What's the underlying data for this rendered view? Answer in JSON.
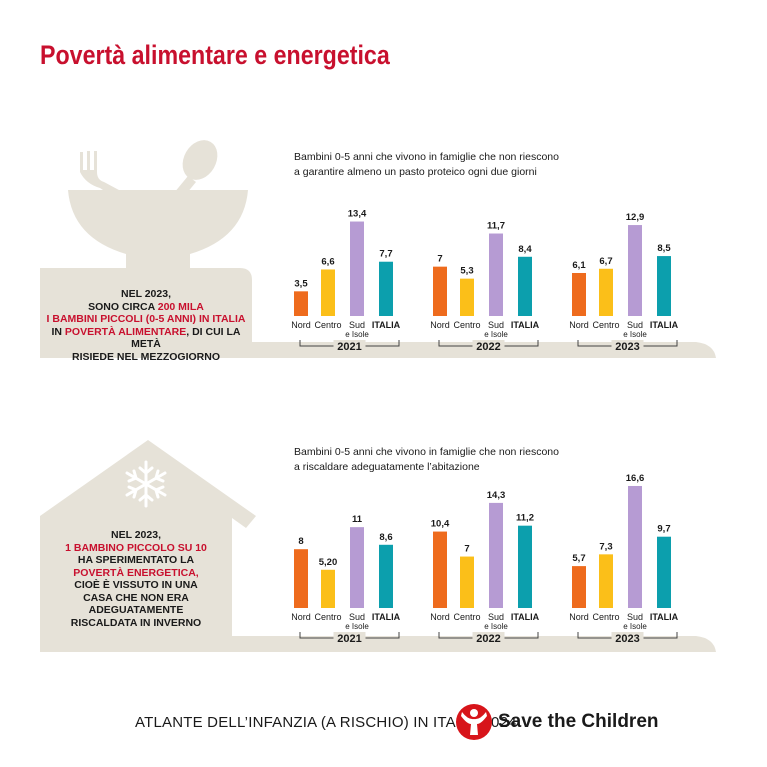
{
  "title": "Povertà alimentare e energetica",
  "footer": {
    "left_text": "ATLANTE DELL’INFANZIA (A RISCHIO) IN ITALIA 2024",
    "logo_text": "Save the Children"
  },
  "colors": {
    "Nord": "#ee6b1d",
    "Centro": "#fbbf19",
    "Sud e Isole": "#b69bd3",
    "ITALIA": "#0c9fad",
    "accent_red": "#c8102e",
    "shape_beige": "#e6e2d8"
  },
  "panels": {
    "food": {
      "subtitle_line1": "Bambini 0-5 anni che vivono in famiglie che non riescono",
      "subtitle_line2": "a garantire almeno un pasto proteico ogni due giorni",
      "icon": "bowl-with-fork-and-spoon-icon",
      "callout": {
        "l1": "NEL 2023,",
        "l2a": "SONO CIRCA ",
        "l2b": "200 MILA",
        "l3": "I BAMBINI PICCOLI (0-5 ANNI) IN ITALIA",
        "l4a": "IN ",
        "l4b": "POVERTÀ ALIMENTARE",
        "l4c": ", DI CUI LA METÀ",
        "l5": "RISIEDE NEL MEZZOGIORNO"
      }
    },
    "energy": {
      "subtitle_line1": "Bambini 0-5 anni che vivono in famiglie che non riescono",
      "subtitle_line2": "a riscaldare adeguatamente l’abitazione",
      "icon": "house-with-snowflake-icon",
      "callout": {
        "l1": "NEL 2023,",
        "l2": "1 BAMBINO PICCOLO SU 10",
        "l3": "HA SPERIMENTATO LA",
        "l4": "POVERTÀ ENERGETICA,",
        "l5": "CIOÈ È VISSUTO IN UNA",
        "l6": "CASA CHE NON ERA",
        "l7": "ADEGUATAMENTE",
        "l8": "RISCALDATA IN INVERNO"
      }
    }
  },
  "chart_data": [
    {
      "type": "bar",
      "title": "Bambini 0-5 anni che vivono in famiglie che non riescono a garantire almeno un pasto proteico ogni due giorni",
      "categories": [
        "Nord",
        "Centro",
        "Sud e Isole",
        "ITALIA"
      ],
      "groups": [
        {
          "label": "2021",
          "values": [
            3.5,
            6.6,
            13.4,
            7.7
          ],
          "value_labels": [
            "3,5",
            "6,6",
            "13,4",
            "7,7"
          ]
        },
        {
          "label": "2022",
          "values": [
            7,
            5.3,
            11.7,
            8.4
          ],
          "value_labels": [
            "7",
            "5,3",
            "11,7",
            "8,4"
          ]
        },
        {
          "label": "2023",
          "values": [
            6.1,
            6.7,
            12.9,
            8.5
          ],
          "value_labels": [
            "6,1",
            "6,7",
            "12,9",
            "8,5"
          ]
        }
      ],
      "legend": "none",
      "grid": false
    },
    {
      "type": "bar",
      "title": "Bambini 0-5 anni che vivono in famiglie che non riescono a riscaldare adeguatamente l’abitazione",
      "categories": [
        "Nord",
        "Centro",
        "Sud e Isole",
        "ITALIA"
      ],
      "groups": [
        {
          "label": "2021",
          "values": [
            8,
            5.2,
            11,
            8.6
          ],
          "value_labels": [
            "8",
            "5,20",
            "11",
            "8,6"
          ]
        },
        {
          "label": "2022",
          "values": [
            10.4,
            7,
            14.3,
            11.2
          ],
          "value_labels": [
            "10,4",
            "7",
            "14,3",
            "11,2"
          ]
        },
        {
          "label": "2023",
          "values": [
            5.7,
            7.3,
            16.6,
            9.7
          ],
          "value_labels": [
            "5,7",
            "7,3",
            "16,6",
            "9,7"
          ]
        }
      ],
      "legend": "none",
      "grid": false
    }
  ]
}
